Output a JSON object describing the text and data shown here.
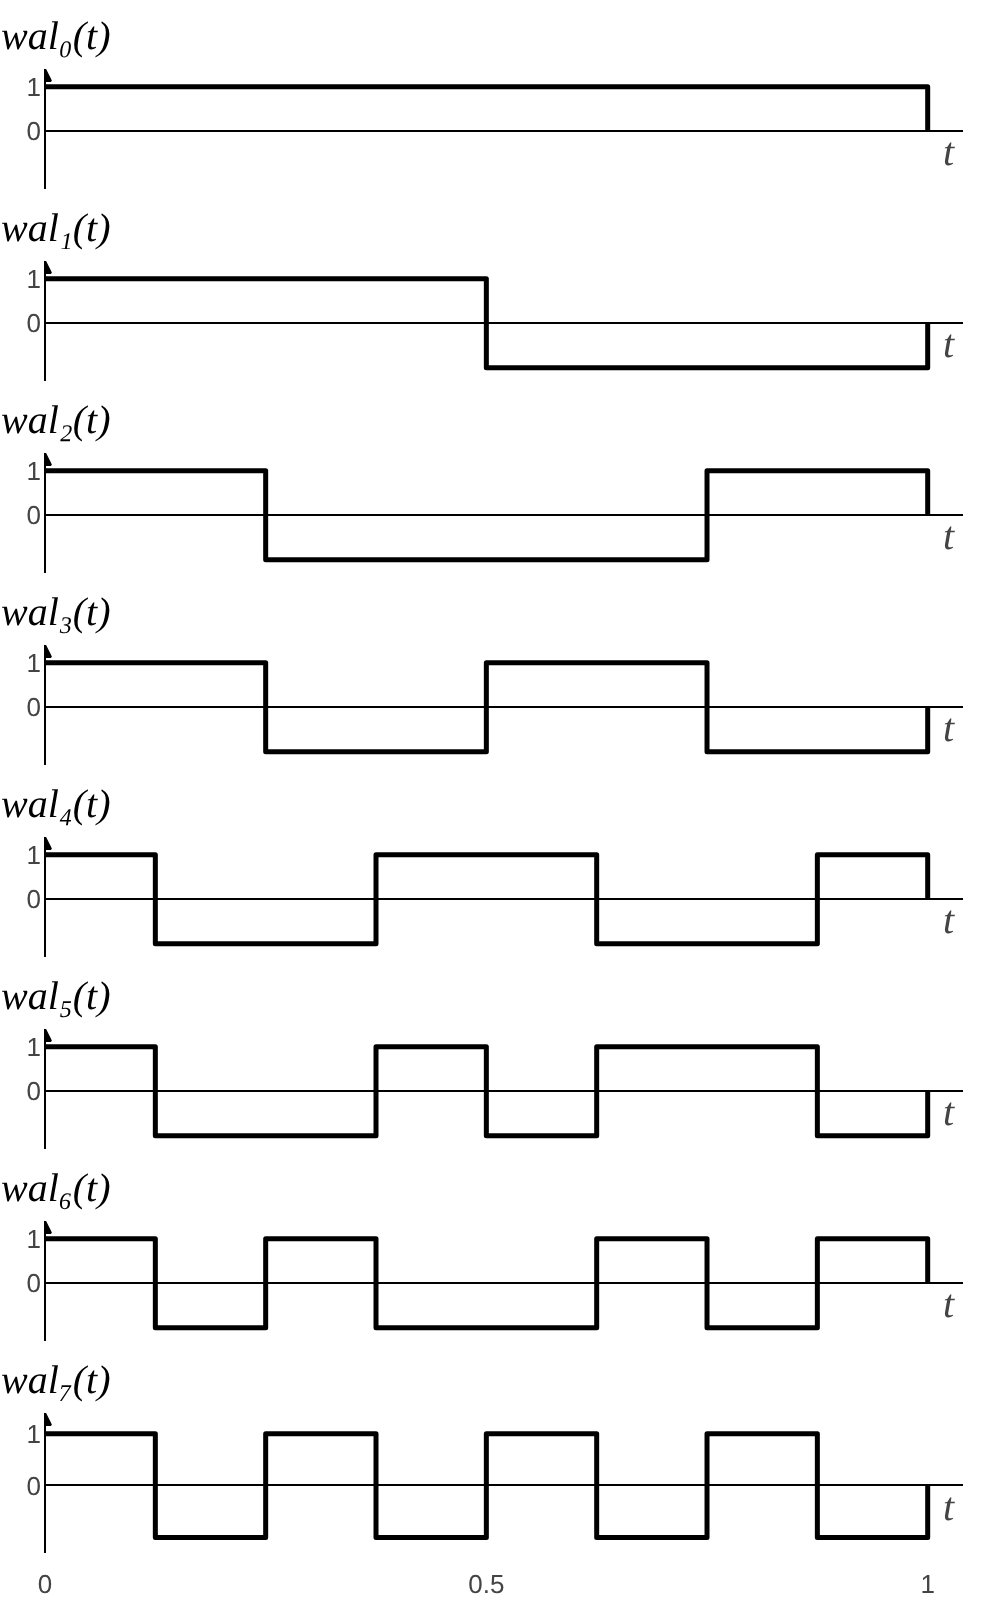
{
  "chart_data": [
    {
      "type": "step",
      "ylabel": "wal₀(t)",
      "xlabel": "t",
      "color": "#000000",
      "x": [
        0,
        0.125,
        0.25,
        0.375,
        0.5,
        0.625,
        0.75,
        0.875,
        1
      ],
      "values": [
        1,
        1,
        1,
        1,
        1,
        1,
        1,
        1,
        0
      ],
      "xlim": [
        0,
        1.04
      ],
      "ylim": [
        -1.3,
        1.4
      ],
      "yticks": [
        0,
        1
      ],
      "tick_labels": "y"
    },
    {
      "type": "step",
      "ylabel": "wal₁(t)",
      "xlabel": "t",
      "color": "#000000",
      "x": [
        0,
        0.125,
        0.25,
        0.375,
        0.5,
        0.625,
        0.75,
        0.875,
        1
      ],
      "values": [
        1,
        1,
        1,
        1,
        -1,
        -1,
        -1,
        -1,
        0
      ],
      "xlim": [
        0,
        1.04
      ],
      "ylim": [
        -1.3,
        1.4
      ],
      "yticks": [
        0,
        1
      ],
      "tick_labels": "y"
    },
    {
      "type": "step",
      "ylabel": "wal₂(t)",
      "xlabel": "t",
      "color": "#000000",
      "x": [
        0,
        0.125,
        0.25,
        0.375,
        0.5,
        0.625,
        0.75,
        0.875,
        1
      ],
      "values": [
        1,
        1,
        -1,
        -1,
        -1,
        -1,
        1,
        1,
        0
      ],
      "xlim": [
        0,
        1.04
      ],
      "ylim": [
        -1.3,
        1.4
      ],
      "yticks": [
        0,
        1
      ],
      "tick_labels": "y"
    },
    {
      "type": "step",
      "ylabel": "wal₃(t)",
      "xlabel": "t",
      "color": "#000000",
      "x": [
        0,
        0.125,
        0.25,
        0.375,
        0.5,
        0.625,
        0.75,
        0.875,
        1
      ],
      "values": [
        1,
        1,
        -1,
        -1,
        1,
        1,
        -1,
        -1,
        0
      ],
      "xlim": [
        0,
        1.04
      ],
      "ylim": [
        -1.3,
        1.4
      ],
      "yticks": [
        0,
        1
      ],
      "tick_labels": "y"
    },
    {
      "type": "step",
      "ylabel": "wal₄(t)",
      "xlabel": "t",
      "color": "#000000",
      "x": [
        0,
        0.125,
        0.25,
        0.375,
        0.5,
        0.625,
        0.75,
        0.875,
        1
      ],
      "values": [
        1,
        -1,
        -1,
        1,
        1,
        -1,
        -1,
        1,
        0
      ],
      "xlim": [
        0,
        1.04
      ],
      "ylim": [
        -1.3,
        1.4
      ],
      "yticks": [
        0,
        1
      ],
      "tick_labels": "y"
    },
    {
      "type": "step",
      "ylabel": "wal₅(t)",
      "xlabel": "t",
      "color": "#000000",
      "x": [
        0,
        0.125,
        0.25,
        0.375,
        0.5,
        0.625,
        0.75,
        0.875,
        1
      ],
      "values": [
        1,
        -1,
        -1,
        1,
        -1,
        1,
        1,
        -1,
        0
      ],
      "xlim": [
        0,
        1.04
      ],
      "ylim": [
        -1.3,
        1.4
      ],
      "yticks": [
        0,
        1
      ],
      "tick_labels": "y"
    },
    {
      "type": "step",
      "ylabel": "wal₆(t)",
      "xlabel": "t",
      "color": "#000000",
      "x": [
        0,
        0.125,
        0.25,
        0.375,
        0.5,
        0.625,
        0.75,
        0.875,
        1
      ],
      "values": [
        1,
        -1,
        1,
        -1,
        -1,
        1,
        -1,
        1,
        0
      ],
      "xlim": [
        0,
        1.04
      ],
      "ylim": [
        -1.3,
        1.4
      ],
      "yticks": [
        0,
        1
      ],
      "tick_labels": "y"
    },
    {
      "type": "step",
      "ylabel": "wal₇(t)",
      "xlabel": "t",
      "color": "#000000",
      "x": [
        0,
        0.125,
        0.25,
        0.375,
        0.5,
        0.625,
        0.75,
        0.875,
        1
      ],
      "values": [
        1,
        -1,
        1,
        -1,
        1,
        -1,
        1,
        -1,
        0
      ],
      "xlim": [
        0,
        1.04
      ],
      "ylim": [
        -1.3,
        1.4
      ],
      "yticks": [
        0,
        1
      ],
      "xticks": [
        0,
        0.5,
        1
      ]
    }
  ]
}
